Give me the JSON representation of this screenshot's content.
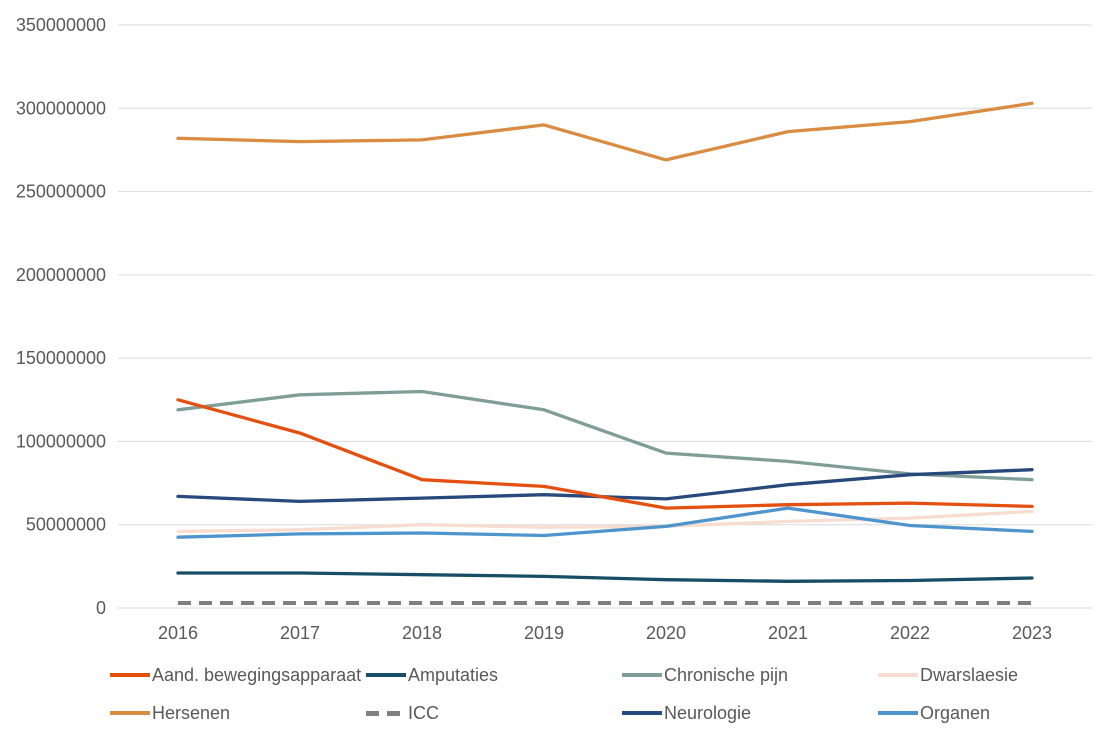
{
  "chart_data": {
    "type": "line",
    "title": "",
    "xlabel": "",
    "ylabel": "",
    "categories": [
      "2016",
      "2017",
      "2018",
      "2019",
      "2020",
      "2021",
      "2022",
      "2023"
    ],
    "y_ticks": [
      0,
      50000000,
      100000000,
      150000000,
      200000000,
      250000000,
      300000000,
      350000000
    ],
    "ylim": [
      0,
      350000000
    ],
    "grid": "horizontal",
    "legend_position": "bottom",
    "axis_color": "#595959",
    "gridline_color": "#D9D9D9",
    "series": [
      {
        "name": "Aand. bewegingsapparaat",
        "color": "#E4500F",
        "dash": null,
        "draw_order": 8,
        "values": [
          125000000,
          105000000,
          77000000,
          73000000,
          60000000,
          62000000,
          63000000,
          61000000
        ]
      },
      {
        "name": "Amputaties",
        "color": "#174E66",
        "dash": null,
        "draw_order": 4,
        "values": [
          21000000,
          21000000,
          20000000,
          19000000,
          17000000,
          16000000,
          16500000,
          18000000
        ]
      },
      {
        "name": "Chronische pijn",
        "color": "#7F9E99",
        "dash": null,
        "draw_order": 1,
        "values": [
          119000000,
          128000000,
          130000000,
          119000000,
          93000000,
          88000000,
          80500000,
          77000000
        ]
      },
      {
        "name": "Dwarslaesie",
        "color": "#F8DCD0",
        "dash": null,
        "draw_order": 2,
        "values": [
          46000000,
          47000000,
          50000000,
          48500000,
          49000000,
          52000000,
          54000000,
          58000000
        ]
      },
      {
        "name": "Hersenen",
        "color": "#D98C42",
        "dash": null,
        "draw_order": 5,
        "values": [
          282000000,
          280000000,
          281000000,
          290000000,
          269000000,
          286000000,
          292000000,
          303000000
        ]
      },
      {
        "name": "ICC",
        "color": "#7F7F7F",
        "dash": "13 8",
        "draw_order": 3,
        "values": [
          3000000,
          3000000,
          3000000,
          3000000,
          3000000,
          3000000,
          3000000,
          3000000
        ]
      },
      {
        "name": "Neurologie",
        "color": "#27497C",
        "dash": null,
        "draw_order": 7,
        "values": [
          67000000,
          64000000,
          66000000,
          68000000,
          65500000,
          74000000,
          80000000,
          83000000
        ]
      },
      {
        "name": "Organen",
        "color": "#4E95CE",
        "dash": null,
        "draw_order": 6,
        "values": [
          42500000,
          44500000,
          45000000,
          43500000,
          49000000,
          60000000,
          49500000,
          46000000
        ]
      }
    ]
  }
}
